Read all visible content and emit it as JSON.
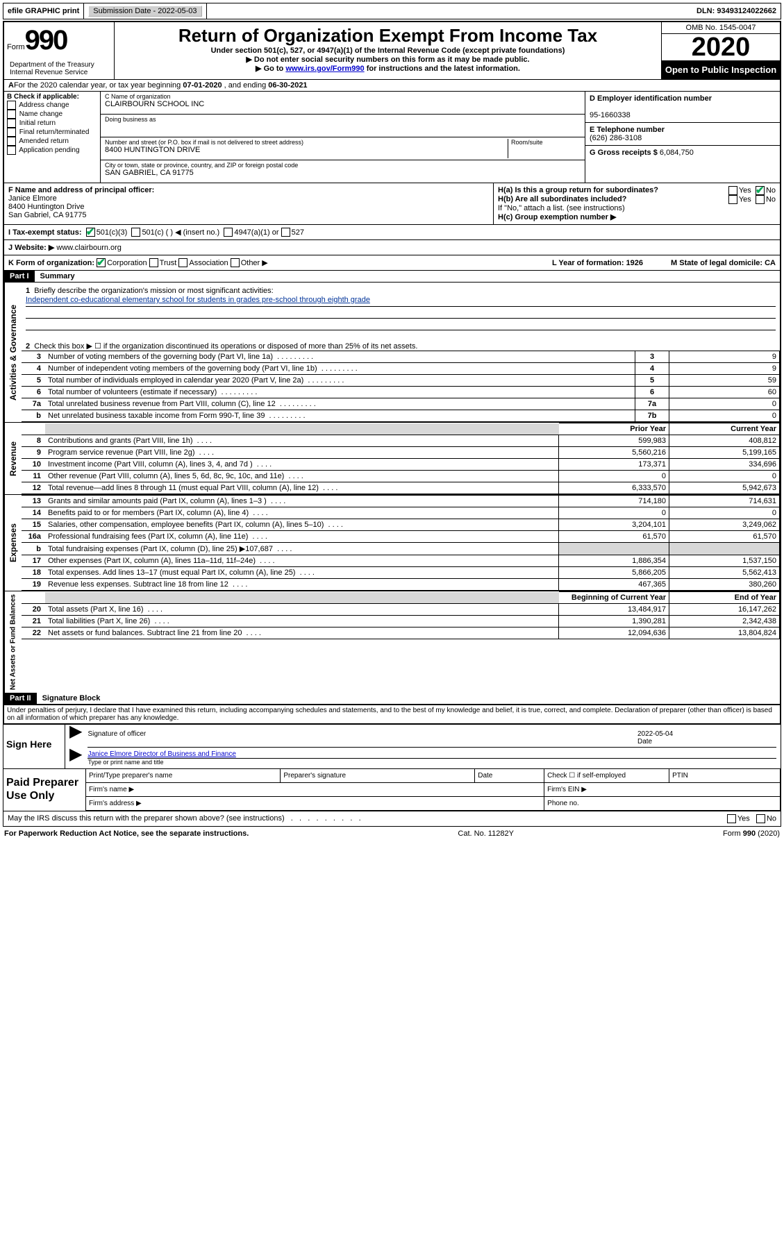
{
  "top_bar": {
    "efile": "efile GRAPHIC print",
    "sub_label": "Submission Date - 2022-05-03",
    "dln": "DLN: 93493124022662"
  },
  "header": {
    "form_word": "Form",
    "form_num": "990",
    "dept": "Department of the Treasury\nInternal Revenue Service",
    "title": "Return of Organization Exempt From Income Tax",
    "sub1": "Under section 501(c), 527, or 4947(a)(1) of the Internal Revenue Code (except private foundations)",
    "sub2": "Do not enter social security numbers on this form as it may be made public.",
    "sub3_pre": "Go to ",
    "sub3_link": "www.irs.gov/Form990",
    "sub3_post": " for instructions and the latest information.",
    "omb": "OMB No. 1545-0047",
    "year": "2020",
    "inspect": "Open to Public Inspection"
  },
  "row_A_pre": "For the 2020 calendar year, or tax year beginning ",
  "row_A_begin": "07-01-2020",
  "row_A_mid": " , and ending ",
  "row_A_end": "06-30-2021",
  "section_B": {
    "label": "B Check if applicable:",
    "opts": [
      "Address change",
      "Name change",
      "Initial return",
      "Final return/terminated",
      "Amended return",
      "Application pending"
    ]
  },
  "section_C": {
    "name_label": "C Name of organization",
    "name": "CLAIRBOURN SCHOOL INC",
    "dba_label": "Doing business as",
    "addr_label": "Number and street (or P.O. box if mail is not delivered to street address)",
    "room_label": "Room/suite",
    "addr": "8400 HUNTINGTON DRIVE",
    "city_label": "City or town, state or province, country, and ZIP or foreign postal code",
    "city": "SAN GABRIEL, CA  91775"
  },
  "section_D": {
    "label": "D Employer identification number",
    "val": "95-1660338"
  },
  "section_E": {
    "label": "E Telephone number",
    "val": "(626) 286-3108"
  },
  "section_G": {
    "label": "G Gross receipts $ ",
    "val": "6,084,750"
  },
  "section_F": {
    "label": "F Name and address of principal officer:",
    "name": "Janice Elmore",
    "addr1": "8400 Huntington Drive",
    "addr2": "San Gabriel, CA  91775"
  },
  "section_H": {
    "a": "H(a)  Is this a group return for subordinates?",
    "b": "H(b)  Are all subordinates included?",
    "b_note": "If \"No,\" attach a list. (see instructions)",
    "c": "H(c)  Group exemption number ▶",
    "yes": "Yes",
    "no": "No"
  },
  "row_I": {
    "label": "I  Tax-exempt status:",
    "o1": "501(c)(3)",
    "o2": "501(c) (   ) ◀ (insert no.)",
    "o3": "4947(a)(1) or",
    "o4": "527"
  },
  "row_J": {
    "label": "J  Website: ▶",
    "val": "www.clairbourn.org"
  },
  "row_K": {
    "label": "K Form of organization:",
    "o1": "Corporation",
    "o2": "Trust",
    "o3": "Association",
    "o4": "Other ▶",
    "L": "L Year of formation: 1926",
    "M": "M State of legal domicile: CA"
  },
  "part1": {
    "hdr": "Part I",
    "title": "Summary"
  },
  "gov": {
    "side": "Activities & Governance",
    "l1": "Briefly describe the organization's mission or most significant activities:",
    "mission": "Independent co-educational elementary school for students in grades pre-school through eighth grade",
    "l2": "Check this box ▶ ☐  if the organization discontinued its operations or disposed of more than 25% of its net assets.",
    "rows": [
      {
        "n": "3",
        "d": "Number of voting members of the governing body (Part VI, line 1a)",
        "v": "9"
      },
      {
        "n": "4",
        "d": "Number of independent voting members of the governing body (Part VI, line 1b)",
        "v": "9"
      },
      {
        "n": "5",
        "d": "Total number of individuals employed in calendar year 2020 (Part V, line 2a)",
        "v": "59"
      },
      {
        "n": "6",
        "d": "Total number of volunteers (estimate if necessary)",
        "v": "60"
      },
      {
        "n": "7a",
        "d": "Total unrelated business revenue from Part VIII, column (C), line 12",
        "v": "0"
      },
      {
        "n": "b",
        "d": "Net unrelated business taxable income from Form 990-T, line 39",
        "nc": "7b",
        "v": "0"
      }
    ]
  },
  "rev": {
    "side": "Revenue",
    "hdr_prior": "Prior Year",
    "hdr_curr": "Current Year",
    "rows": [
      {
        "n": "8",
        "d": "Contributions and grants (Part VIII, line 1h)",
        "p": "599,983",
        "c": "408,812"
      },
      {
        "n": "9",
        "d": "Program service revenue (Part VIII, line 2g)",
        "p": "5,560,216",
        "c": "5,199,165"
      },
      {
        "n": "10",
        "d": "Investment income (Part VIII, column (A), lines 3, 4, and 7d )",
        "p": "173,371",
        "c": "334,696"
      },
      {
        "n": "11",
        "d": "Other revenue (Part VIII, column (A), lines 5, 6d, 8c, 9c, 10c, and 11e)",
        "p": "0",
        "c": "0"
      },
      {
        "n": "12",
        "d": "Total revenue—add lines 8 through 11 (must equal Part VIII, column (A), line 12)",
        "p": "6,333,570",
        "c": "5,942,673"
      }
    ]
  },
  "exp": {
    "side": "Expenses",
    "rows": [
      {
        "n": "13",
        "d": "Grants and similar amounts paid (Part IX, column (A), lines 1–3 )",
        "p": "714,180",
        "c": "714,631"
      },
      {
        "n": "14",
        "d": "Benefits paid to or for members (Part IX, column (A), line 4)",
        "p": "0",
        "c": "0"
      },
      {
        "n": "15",
        "d": "Salaries, other compensation, employee benefits (Part IX, column (A), lines 5–10)",
        "p": "3,204,101",
        "c": "3,249,062"
      },
      {
        "n": "16a",
        "d": "Professional fundraising fees (Part IX, column (A), line 11e)",
        "p": "61,570",
        "c": "61,570"
      },
      {
        "n": "b",
        "d": "Total fundraising expenses (Part IX, column (D), line 25) ▶107,687",
        "p": "",
        "c": "",
        "grey": true
      },
      {
        "n": "17",
        "d": "Other expenses (Part IX, column (A), lines 11a–11d, 11f–24e)",
        "p": "1,886,354",
        "c": "1,537,150"
      },
      {
        "n": "18",
        "d": "Total expenses. Add lines 13–17 (must equal Part IX, column (A), line 25)",
        "p": "5,866,205",
        "c": "5,562,413"
      },
      {
        "n": "19",
        "d": "Revenue less expenses. Subtract line 18 from line 12",
        "p": "467,365",
        "c": "380,260"
      }
    ]
  },
  "net": {
    "side": "Net Assets or Fund Balances",
    "hdr_prior": "Beginning of Current Year",
    "hdr_curr": "End of Year",
    "rows": [
      {
        "n": "20",
        "d": "Total assets (Part X, line 16)",
        "p": "13,484,917",
        "c": "16,147,262"
      },
      {
        "n": "21",
        "d": "Total liabilities (Part X, line 26)",
        "p": "1,390,281",
        "c": "2,342,438"
      },
      {
        "n": "22",
        "d": "Net assets or fund balances. Subtract line 21 from line 20",
        "p": "12,094,636",
        "c": "13,804,824"
      }
    ]
  },
  "part2": {
    "hdr": "Part II",
    "title": "Signature Block"
  },
  "penalties": "Under penalties of perjury, I declare that I have examined this return, including accompanying schedules and statements, and to the best of my knowledge and belief, it is true, correct, and complete. Declaration of preparer (other than officer) is based on all information of which preparer has any knowledge.",
  "sign": {
    "left": "Sign Here",
    "sig_label": "Signature of officer",
    "date_label": "Date",
    "date": "2022-05-04",
    "name": "Janice Elmore  Director of Business and Finance",
    "name_label": "Type or print name and title"
  },
  "prep": {
    "left": "Paid Preparer Use Only",
    "h1": "Print/Type preparer's name",
    "h2": "Preparer's signature",
    "h3": "Date",
    "h4": "Check ☐ if self-employed",
    "h5": "PTIN",
    "firm_name": "Firm's name  ▶",
    "firm_ein": "Firm's EIN ▶",
    "firm_addr": "Firm's address ▶",
    "phone": "Phone no."
  },
  "discuss": "May the IRS discuss this return with the preparer shown above? (see instructions)",
  "footer": {
    "left": "For Paperwork Reduction Act Notice, see the separate instructions.",
    "mid": "Cat. No. 11282Y",
    "right": "Form 990 (2020)"
  }
}
